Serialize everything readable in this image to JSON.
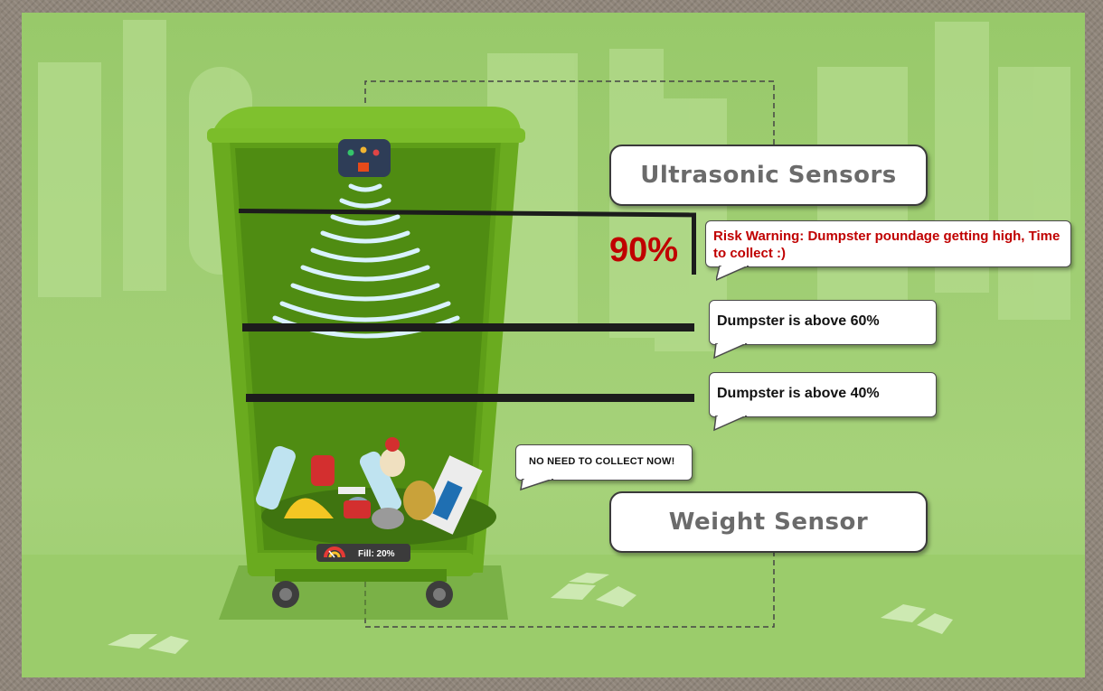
{
  "labels": {
    "ultrasonic": "Ultrasonic Sensors",
    "weight": "Weight Sensor"
  },
  "fill_indicator": {
    "percent_text": "90%",
    "warning_text": "Risk Warning: Dumpster poundage getting high, Time to collect :)",
    "warning_color": "#c00000"
  },
  "levels": [
    {
      "text": "Dumpster is above 60%"
    },
    {
      "text": "Dumpster is above 40%"
    }
  ],
  "status_bubble": "NO NEED TO COLLECT NOW!",
  "bin_gauge": {
    "text": "Fill: 20%",
    "fill_fraction": 0.2
  },
  "colors": {
    "background": "#a0cf73",
    "bin": "#6aab1f",
    "bin_dark": "#4f8c12",
    "sensor_waves": "#d9f2ff",
    "level_lines": "#1c1c1c"
  }
}
